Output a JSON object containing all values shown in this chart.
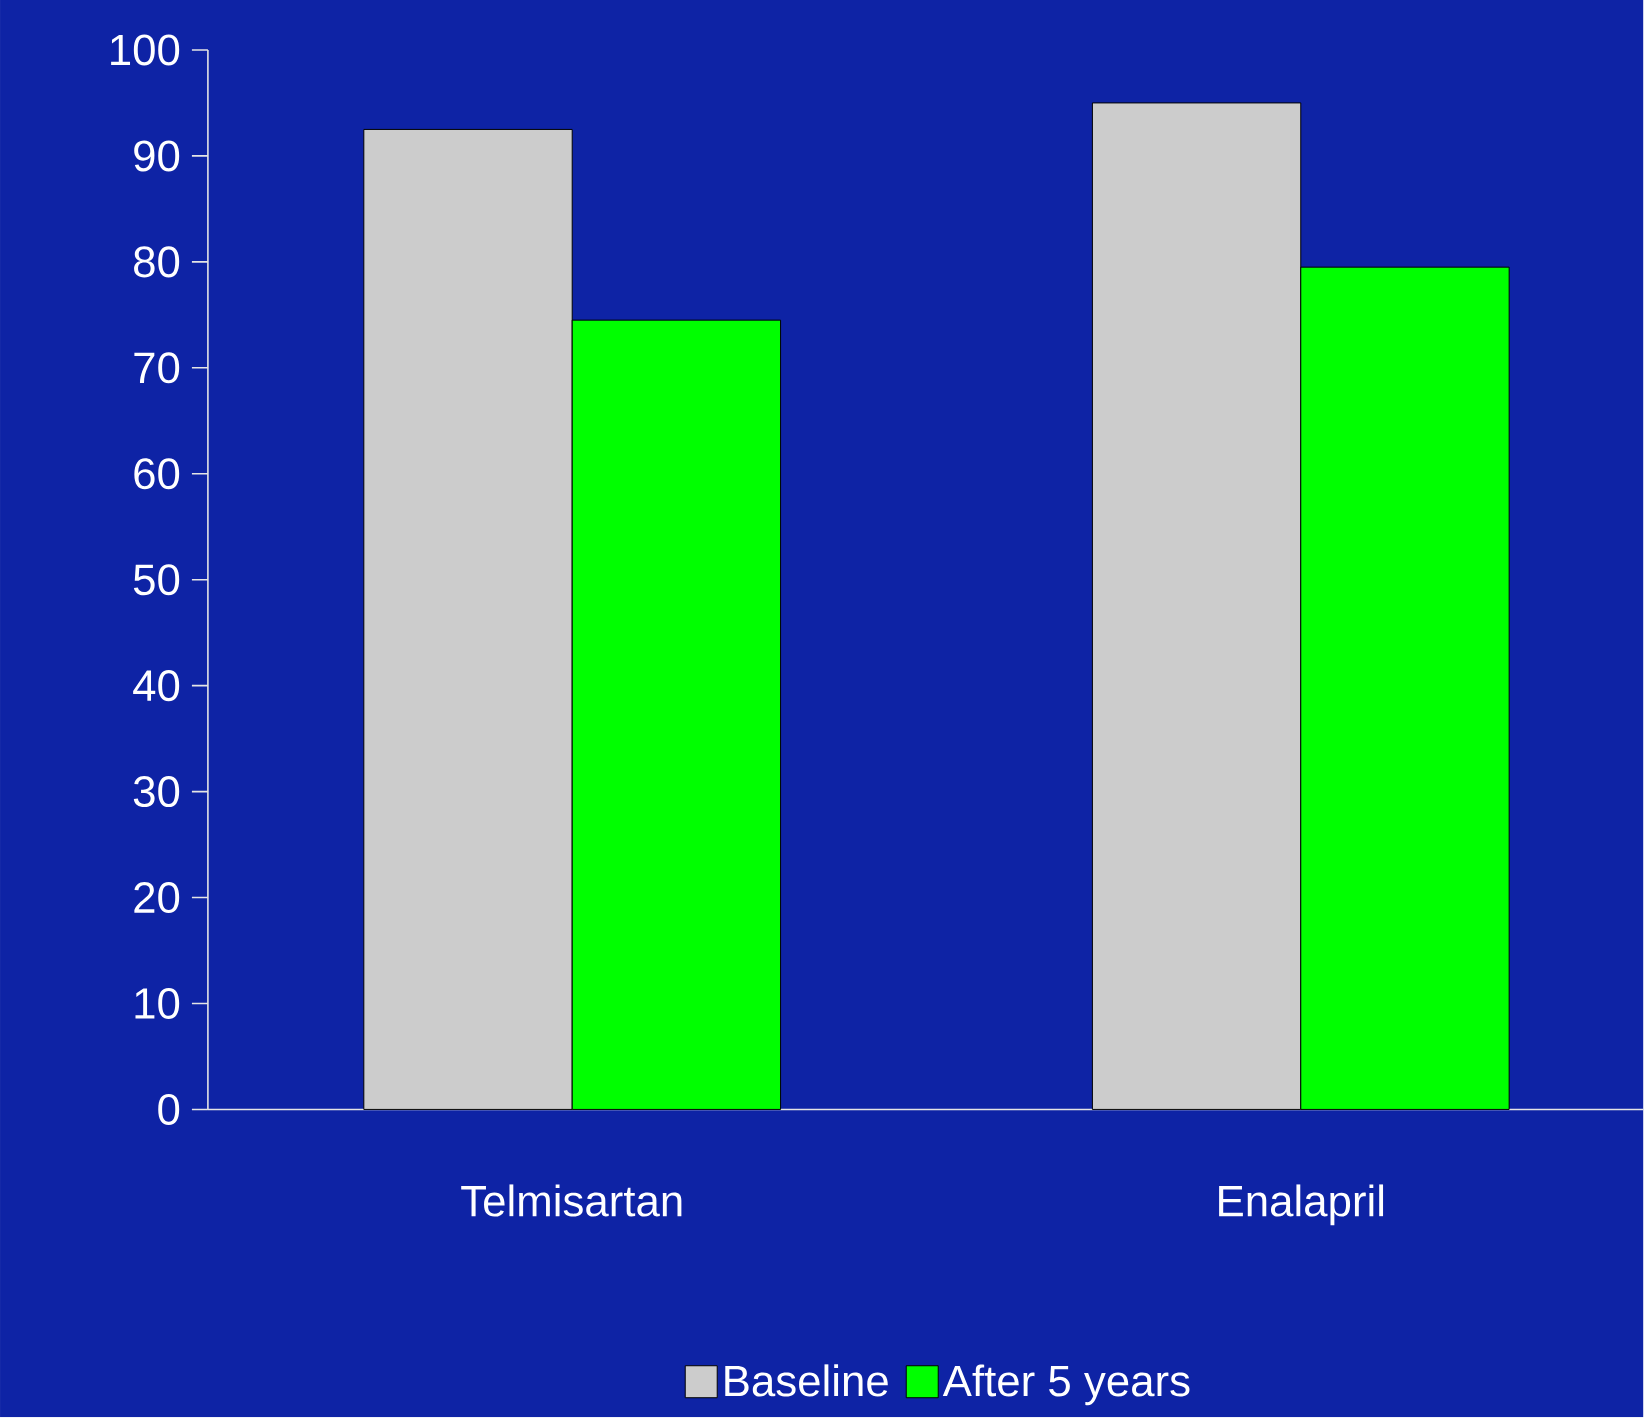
{
  "chart_data": {
    "type": "bar",
    "categories": [
      "Telmisartan",
      "Enalapril"
    ],
    "series": [
      {
        "name": "Baseline",
        "color": "#cccccc",
        "values": [
          92.5,
          95
        ]
      },
      {
        "name": "After 5 years",
        "color": "#00ff00",
        "values": [
          74.5,
          79.5
        ]
      }
    ],
    "ylim": [
      0,
      100
    ],
    "yticks": [
      0,
      10,
      20,
      30,
      40,
      50,
      60,
      70,
      80,
      90,
      100
    ],
    "legend": "bottom",
    "grid": false
  }
}
